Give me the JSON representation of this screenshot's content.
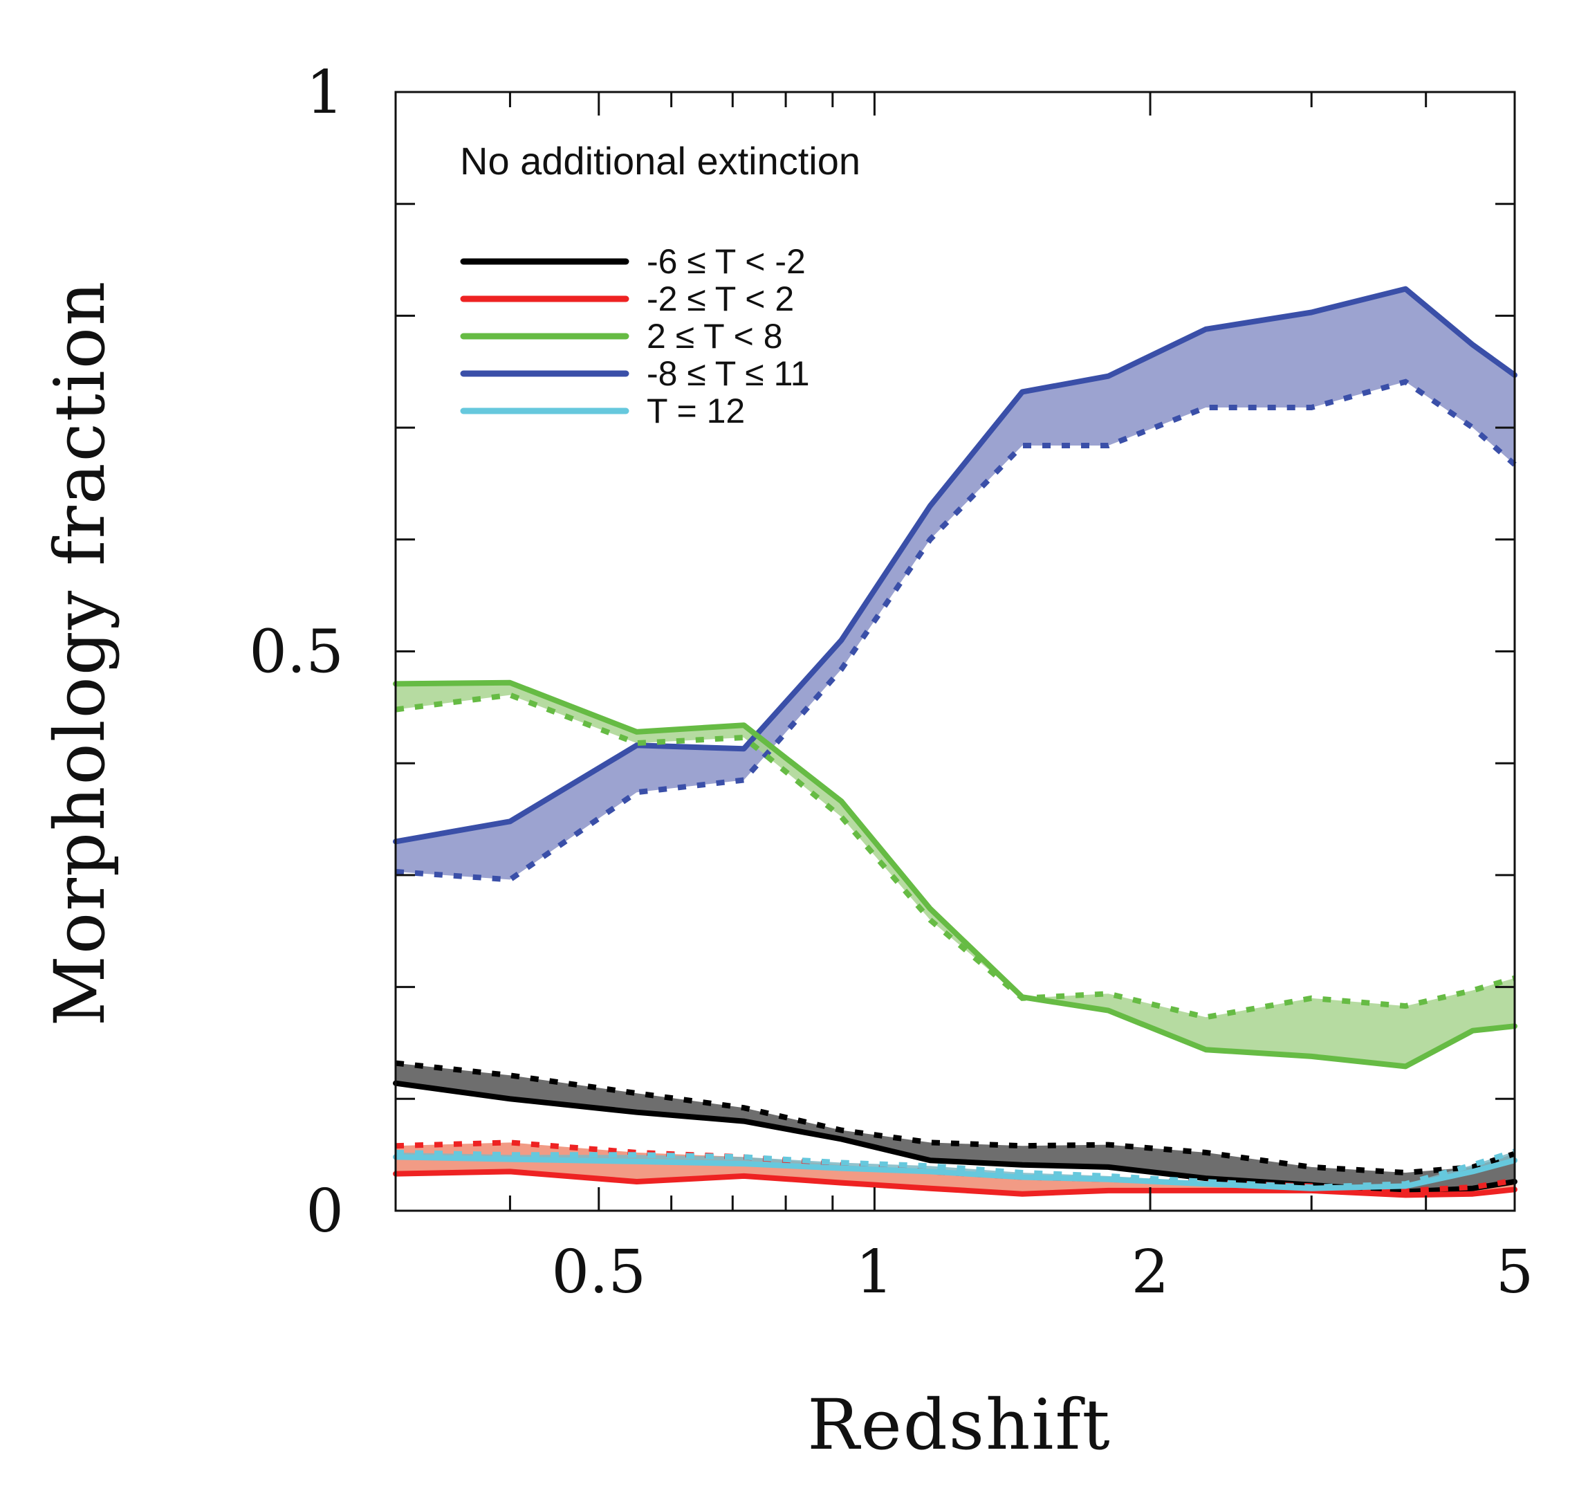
{
  "chart_data": {
    "type": "line",
    "title": "",
    "annotation": "No additional extinction",
    "xlabel": "Redshift",
    "ylabel": "Morphology fraction",
    "xscale": "log",
    "xlim": [
      0.3,
      5
    ],
    "ylim": [
      0,
      1
    ],
    "x_tick_labels": [
      "0.5",
      "1",
      "2",
      "5"
    ],
    "x_tick_values": [
      0.5,
      1,
      2,
      5
    ],
    "y_tick_labels": [
      "0",
      "0.5",
      "1"
    ],
    "y_tick_values": [
      0,
      0.5,
      1
    ],
    "legend_position": "top-left",
    "x": [
      0.3,
      0.4,
      0.55,
      0.72,
      0.92,
      1.15,
      1.45,
      1.8,
      2.3,
      3.0,
      3.8,
      4.5,
      5.0
    ],
    "series": [
      {
        "name": "-6 ≤ T < -2",
        "color": "#000000",
        "band_color": "#555555",
        "solid": [
          0.114,
          0.1,
          0.088,
          0.08,
          0.064,
          0.045,
          0.041,
          0.039,
          0.029,
          0.023,
          0.017,
          0.02,
          0.026
        ],
        "dotted": [
          0.132,
          0.121,
          0.105,
          0.092,
          0.072,
          0.061,
          0.058,
          0.059,
          0.052,
          0.039,
          0.034,
          0.039,
          0.051
        ]
      },
      {
        "name": "-2 ≤ T < 2",
        "color": "#ee2222",
        "band_color": "#f08a70",
        "solid": [
          0.033,
          0.035,
          0.026,
          0.031,
          0.025,
          0.02,
          0.015,
          0.018,
          0.018,
          0.018,
          0.014,
          0.015,
          0.019
        ],
        "dotted": [
          0.058,
          0.061,
          0.052,
          0.048,
          0.041,
          0.035,
          0.03,
          0.028,
          0.025,
          0.022,
          0.018,
          0.021,
          0.027
        ]
      },
      {
        "name": " 2 ≤ T < 8",
        "color": "#66bb44",
        "band_color": "#a9d590",
        "solid": [
          0.471,
          0.472,
          0.428,
          0.434,
          0.366,
          0.27,
          0.191,
          0.179,
          0.144,
          0.138,
          0.129,
          0.161,
          0.165
        ],
        "dotted": [
          0.448,
          0.461,
          0.418,
          0.423,
          0.352,
          0.26,
          0.19,
          0.194,
          0.173,
          0.19,
          0.183,
          0.197,
          0.208
        ]
      },
      {
        "name": "-8 ≤ T ≤ 11",
        "color": "#3a4fa8",
        "band_color": "#8b93c8",
        "solid": [
          0.33,
          0.348,
          0.416,
          0.413,
          0.51,
          0.63,
          0.732,
          0.746,
          0.788,
          0.803,
          0.824,
          0.774,
          0.747
        ],
        "dotted": [
          0.303,
          0.296,
          0.374,
          0.385,
          0.484,
          0.6,
          0.684,
          0.684,
          0.718,
          0.718,
          0.741,
          0.7,
          0.667
        ]
      },
      {
        "name": "  T = 12",
        "color": "#66c8dd",
        "band_color": "#7fb8c4",
        "solid": [
          0.048,
          0.046,
          0.044,
          0.042,
          0.038,
          0.035,
          0.03,
          0.028,
          0.024,
          0.02,
          0.022,
          0.035,
          0.045
        ],
        "dotted": [
          0.052,
          0.05,
          0.05,
          0.048,
          0.043,
          0.04,
          0.034,
          0.031,
          0.026,
          0.021,
          0.024,
          0.041,
          0.053
        ]
      }
    ]
  }
}
